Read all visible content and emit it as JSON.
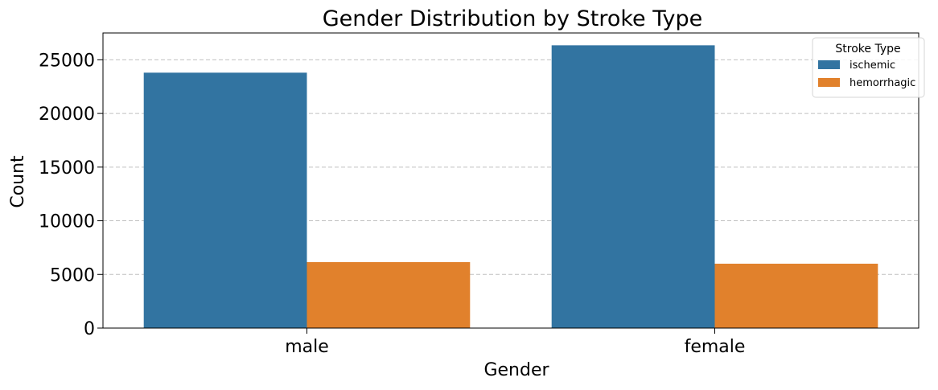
{
  "chart_data": {
    "type": "bar",
    "title": "Gender Distribution by Stroke Type",
    "xlabel": "Gender",
    "ylabel": "Count",
    "categories": [
      "male",
      "female"
    ],
    "series": [
      {
        "name": "ischemic",
        "values": [
          23800,
          26350
        ],
        "color": "#3274a1"
      },
      {
        "name": "hemorrhagic",
        "values": [
          6150,
          6000
        ],
        "color": "#e1812c"
      }
    ],
    "ylim": [
      0,
      27500
    ],
    "yticks": [
      0,
      5000,
      10000,
      15000,
      20000,
      25000
    ],
    "grid": "y-dashed",
    "legend": {
      "title": "Stroke Type",
      "placement": "top-right"
    }
  }
}
